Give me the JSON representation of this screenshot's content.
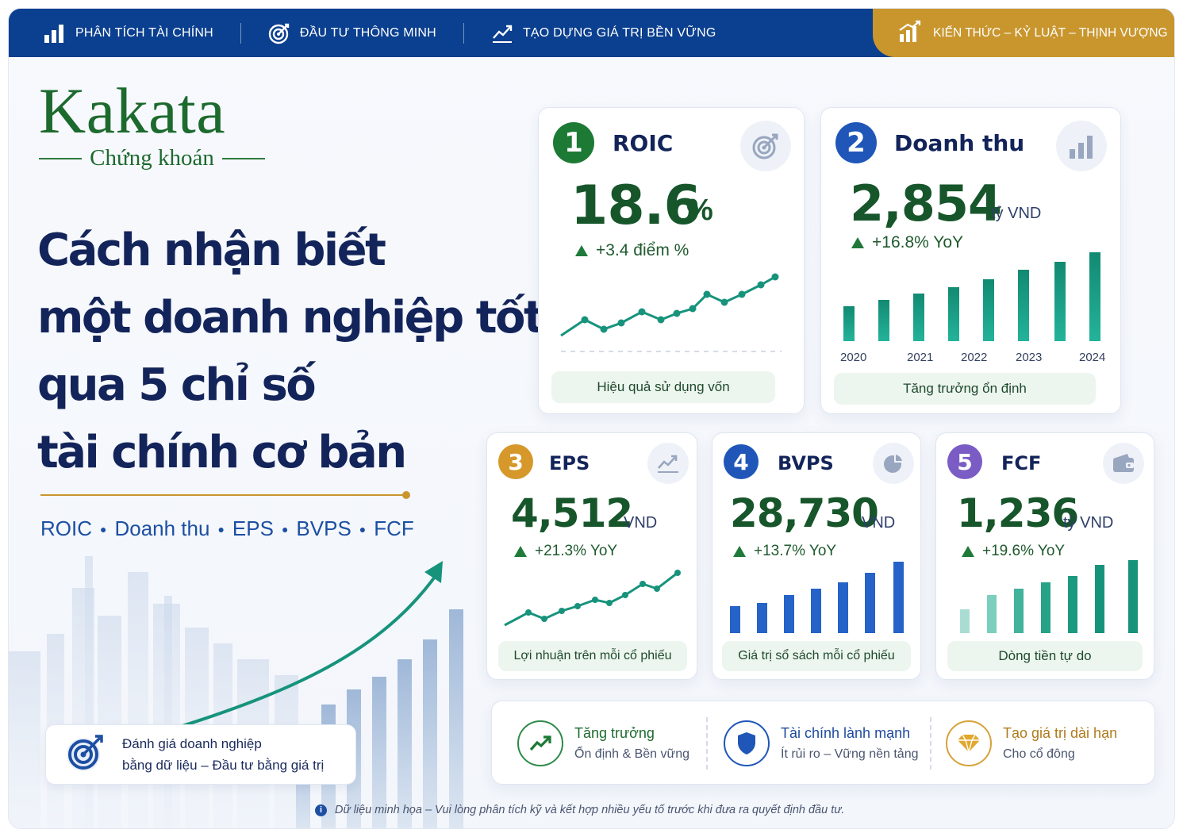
{
  "topnav": {
    "items": [
      {
        "label": "PHÂN TÍCH TÀI CHÍNH",
        "icon": "bar-chart-icon"
      },
      {
        "label": "ĐẦU TƯ THÔNG MINH",
        "icon": "target-icon"
      },
      {
        "label": "TẠO DỰNG GIÁ TRỊ BỀN VỮNG",
        "icon": "trend-up-icon"
      }
    ],
    "tagline": "KIẾN THỨC – KỶ LUẬT – THỊNH VƯỢNG"
  },
  "brand": {
    "name": "Kakata",
    "sub": "Chứng khoán"
  },
  "headline": [
    "Cách nhận biết",
    "một doanh nghiệp tốt",
    "qua 5 chỉ số",
    "tài chính cơ bản"
  ],
  "kpi_list": [
    "ROIC",
    "Doanh thu",
    "EPS",
    "BVPS",
    "FCF"
  ],
  "badge": {
    "line1": "Đánh giá doanh nghiệp",
    "line2": "bằng dữ liệu – Đầu tư bằng giá trị"
  },
  "colors": {
    "navy": "#0b3f8f",
    "gold": "#c9962e",
    "green": "#1d6a2e",
    "teal": "#16a085",
    "blue": "#2563c9",
    "purple": "#7b5cc4"
  },
  "cards": {
    "roic": {
      "num": "1",
      "title": "ROIC",
      "value": "18.6",
      "unit": "%",
      "change": "+3.4 điểm %",
      "caption": "Hiệu quả sử dụng vốn",
      "icon": "target-icon"
    },
    "revenue": {
      "num": "2",
      "title": "Doanh thu",
      "value": "2,854",
      "unit": "tỷ VND",
      "change": "+16.8% YoY",
      "caption": "Tăng trưởng ổn định",
      "icon": "bar-chart-icon",
      "years": [
        "2020",
        "2021",
        "2022",
        "2023",
        "2024"
      ]
    },
    "eps": {
      "num": "3",
      "title": "EPS",
      "value": "4,512",
      "unit": "VND",
      "change": "+21.3% YoY",
      "caption": "Lợi nhuận trên mỗi cổ phiếu",
      "icon": "line-chart-icon"
    },
    "bvps": {
      "num": "4",
      "title": "BVPS",
      "value": "28,730",
      "unit": "VND",
      "change": "+13.7% YoY",
      "caption": "Giá trị sổ sách mỗi cổ phiếu",
      "icon": "pie-chart-icon"
    },
    "fcf": {
      "num": "5",
      "title": "FCF",
      "value": "1,236",
      "unit": "tỷ VND",
      "change": "+19.6% YoY",
      "caption": "Dòng tiền tự do",
      "icon": "wallet-icon"
    }
  },
  "features": [
    {
      "title": "Tăng trưởng",
      "sub": "Ổn định & Bền vững",
      "icon": "trend-up-icon"
    },
    {
      "title": "Tài chính lành mạnh",
      "sub": "Ít rủi ro – Vững nền tảng",
      "icon": "shield-icon"
    },
    {
      "title": "Tạo giá trị dài hạn",
      "sub": "Cho cổ đông",
      "icon": "diamond-icon"
    }
  ],
  "footnote": "Dữ liệu minh họa – Vui lòng phân tích kỹ và kết hợp nhiều yếu tố trước khi đưa ra quyết định đầu tư."
}
